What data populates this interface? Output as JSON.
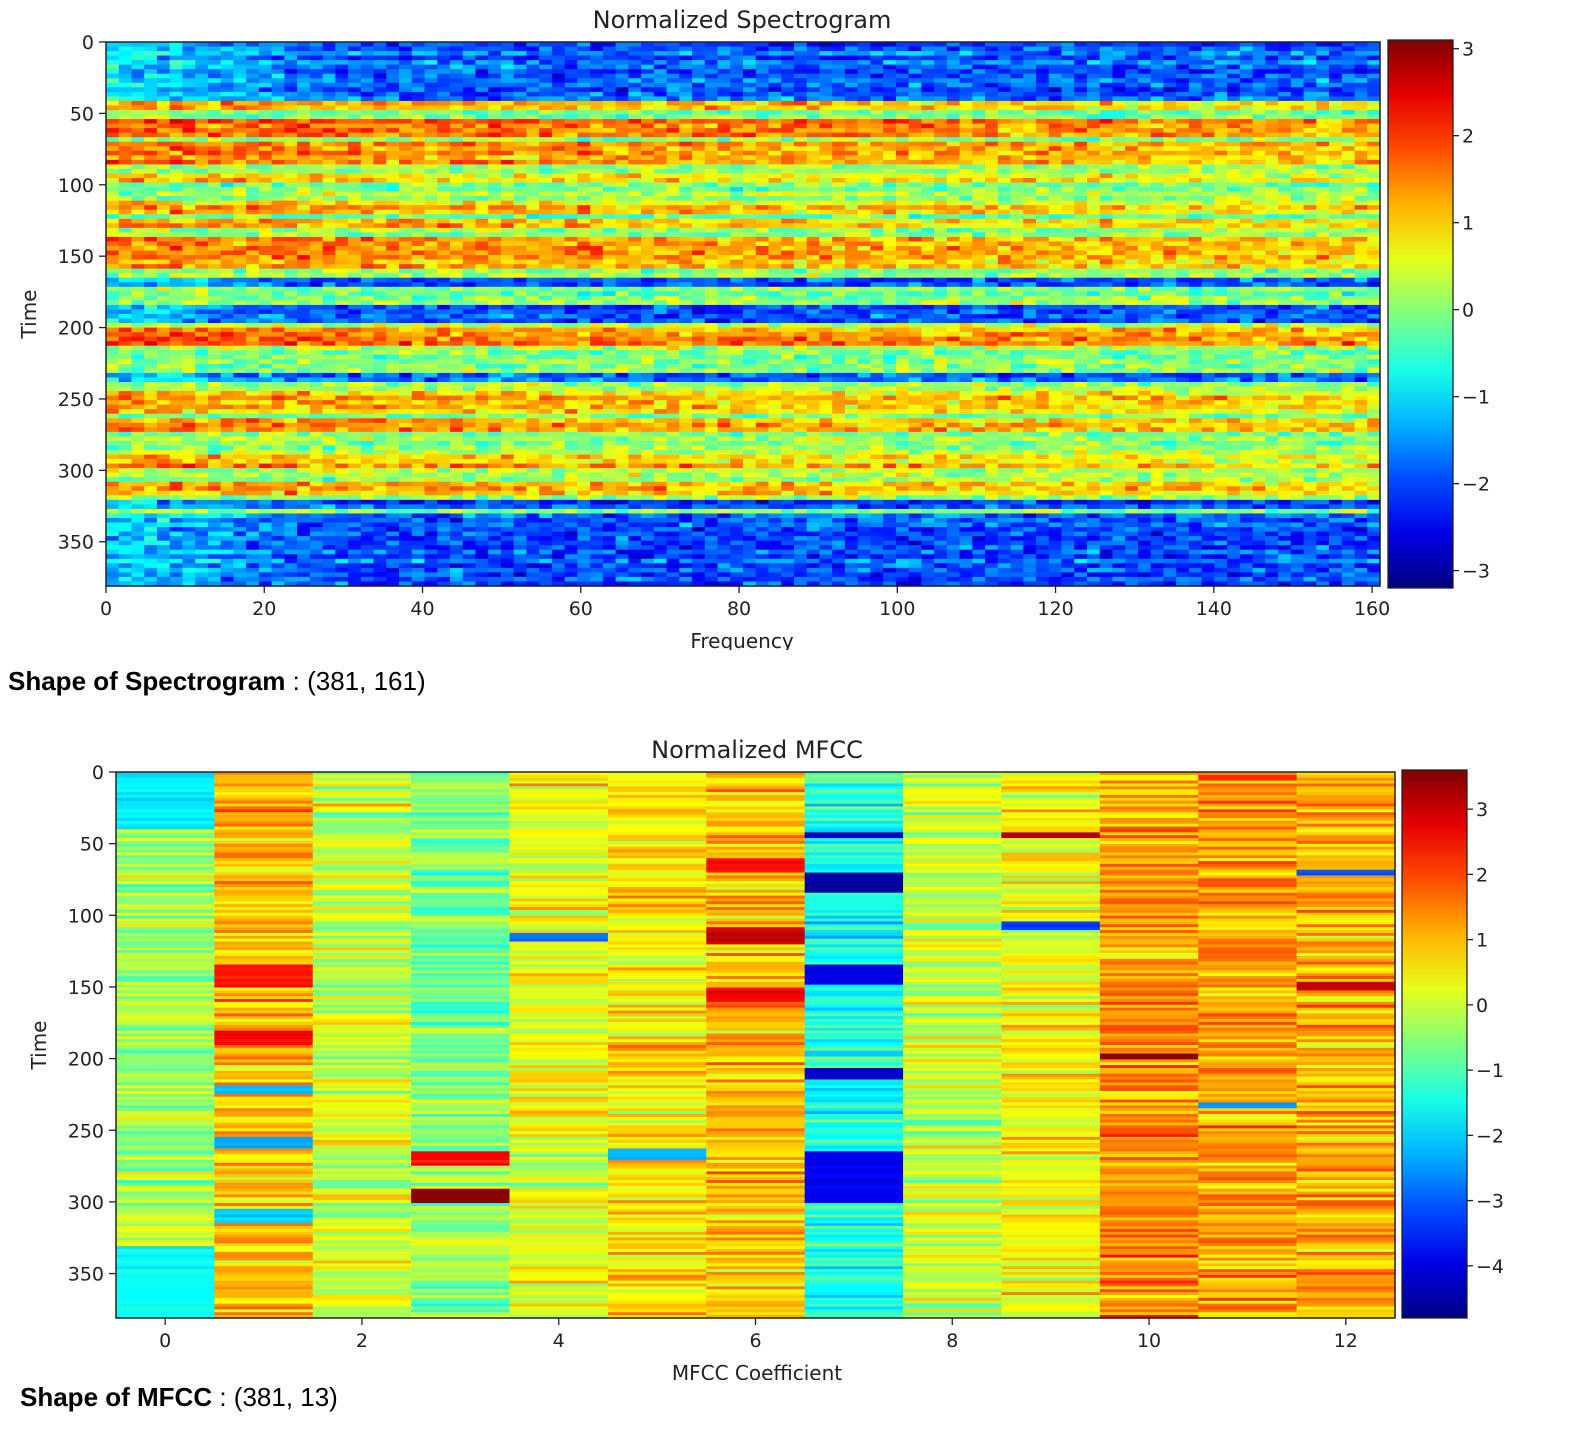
{
  "chart_data": [
    {
      "type": "heatmap",
      "title": "Normalized Spectrogram",
      "xlabel": "Frequency",
      "ylabel": "Time",
      "shape": [
        381,
        161
      ],
      "xlim": [
        0,
        161
      ],
      "ylim": [
        381,
        0
      ],
      "x_ticks": [
        0,
        20,
        40,
        60,
        80,
        100,
        120,
        140,
        160
      ],
      "y_ticks": [
        0,
        50,
        100,
        150,
        200,
        250,
        300,
        350
      ],
      "colormap": "jet",
      "colorbar": {
        "range": [
          -3.2,
          3.1
        ],
        "ticks": [
          3,
          2,
          1,
          0,
          -1,
          -2,
          -3
        ]
      },
      "bands": [
        {
          "t0": 0,
          "t1": 40,
          "value": -1.8
        },
        {
          "t0": 42,
          "t1": 48,
          "value": 1.2
        },
        {
          "t0": 55,
          "t1": 68,
          "value": 1.9
        },
        {
          "t0": 70,
          "t1": 85,
          "value": 1.6
        },
        {
          "t0": 92,
          "t1": 100,
          "value": 1.1
        },
        {
          "t0": 110,
          "t1": 122,
          "value": 1.2
        },
        {
          "t0": 125,
          "t1": 130,
          "value": 1.4
        },
        {
          "t0": 138,
          "t1": 160,
          "value": 1.5
        },
        {
          "t0": 165,
          "t1": 170,
          "value": -1.8
        },
        {
          "t0": 185,
          "t1": 196,
          "value": -1.9
        },
        {
          "t0": 200,
          "t1": 212,
          "value": 1.8
        },
        {
          "t0": 232,
          "t1": 238,
          "value": -1.7
        },
        {
          "t0": 245,
          "t1": 260,
          "value": 1.3
        },
        {
          "t0": 262,
          "t1": 272,
          "value": 1.5
        },
        {
          "t0": 288,
          "t1": 298,
          "value": 1.3
        },
        {
          "t0": 308,
          "t1": 318,
          "value": 1.2
        },
        {
          "t0": 320,
          "t1": 326,
          "value": -2.0
        },
        {
          "t0": 330,
          "t1": 381,
          "value": -1.9
        }
      ]
    },
    {
      "type": "heatmap",
      "title": "Normalized MFCC",
      "xlabel": "MFCC Coefficient",
      "ylabel": "Time",
      "shape": [
        381,
        13
      ],
      "xlim": [
        -0.5,
        12.5
      ],
      "ylim": [
        381,
        0
      ],
      "x_ticks": [
        0,
        2,
        4,
        6,
        8,
        10,
        12
      ],
      "y_ticks": [
        0,
        50,
        100,
        150,
        200,
        250,
        300,
        350
      ],
      "colormap": "jet",
      "colorbar": {
        "range": [
          -4.8,
          3.6
        ],
        "ticks": [
          3,
          2,
          1,
          0,
          -1,
          -2,
          -3,
          -4
        ]
      },
      "column_means": [
        -0.3,
        1.0,
        0.0,
        -0.6,
        0.3,
        0.6,
        1.0,
        -1.5,
        0.0,
        0.4,
        1.3,
        1.2,
        1.1
      ],
      "highlights": [
        {
          "col": 0,
          "t0": 0,
          "t1": 40,
          "value": -1.8
        },
        {
          "col": 0,
          "t0": 330,
          "t1": 381,
          "value": -1.6
        },
        {
          "col": 1,
          "t0": 135,
          "t1": 150,
          "value": 2.3
        },
        {
          "col": 1,
          "t0": 180,
          "t1": 190,
          "value": 2.5
        },
        {
          "col": 1,
          "t0": 218,
          "t1": 224,
          "value": -2.2
        },
        {
          "col": 1,
          "t0": 255,
          "t1": 262,
          "value": -2.3
        },
        {
          "col": 1,
          "t0": 305,
          "t1": 315,
          "value": -2.0
        },
        {
          "col": 3,
          "t0": 265,
          "t1": 275,
          "value": 2.5
        },
        {
          "col": 3,
          "t0": 290,
          "t1": 300,
          "value": 3.5
        },
        {
          "col": 4,
          "t0": 112,
          "t1": 118,
          "value": -2.8
        },
        {
          "col": 5,
          "t0": 262,
          "t1": 270,
          "value": -2.3
        },
        {
          "col": 6,
          "t0": 108,
          "t1": 120,
          "value": 3.0
        },
        {
          "col": 6,
          "t0": 150,
          "t1": 160,
          "value": 2.7
        },
        {
          "col": 6,
          "t0": 60,
          "t1": 70,
          "value": 2.5
        },
        {
          "col": 7,
          "t0": 42,
          "t1": 47,
          "value": -4.2
        },
        {
          "col": 7,
          "t0": 70,
          "t1": 85,
          "value": -4.5
        },
        {
          "col": 7,
          "t0": 135,
          "t1": 148,
          "value": -4.0
        },
        {
          "col": 7,
          "t0": 206,
          "t1": 214,
          "value": -4.2
        },
        {
          "col": 7,
          "t0": 265,
          "t1": 300,
          "value": -3.8
        },
        {
          "col": 9,
          "t0": 42,
          "t1": 46,
          "value": 3.2
        },
        {
          "col": 9,
          "t0": 104,
          "t1": 110,
          "value": -3.2
        },
        {
          "col": 10,
          "t0": 196,
          "t1": 200,
          "value": 3.5
        },
        {
          "col": 11,
          "t0": 230,
          "t1": 234,
          "value": -2.5
        },
        {
          "col": 12,
          "t0": 146,
          "t1": 152,
          "value": 3.0
        },
        {
          "col": 12,
          "t0": 68,
          "t1": 72,
          "value": -3.0
        }
      ]
    }
  ],
  "captions": {
    "spectrogram": {
      "label": "Shape of Spectrogram",
      "value": " : (381, 161)"
    },
    "mfcc": {
      "label": "Shape of MFCC",
      "value": " : (381, 13)"
    }
  }
}
